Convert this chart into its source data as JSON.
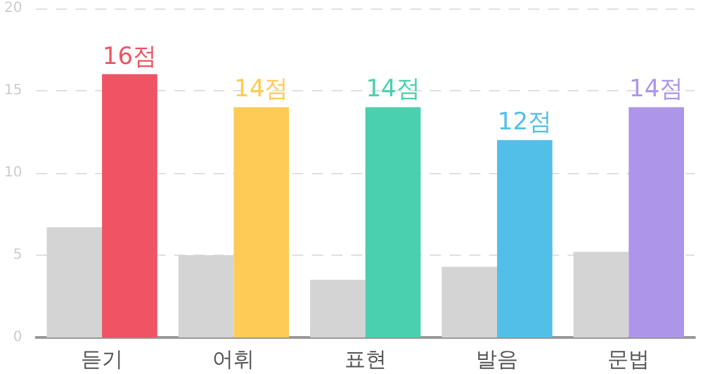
{
  "chart_data": {
    "type": "bar",
    "categories": [
      "듣기",
      "어휘",
      "표현",
      "발음",
      "문법"
    ],
    "series": [
      {
        "color": "#d4d4d4",
        "values": [
          6.7,
          5.0,
          3.5,
          4.3,
          5.2
        ]
      },
      {
        "colors": [
          "#ee5463",
          "#fecb55",
          "#4ad0ae",
          "#52bfe8",
          "#ad95ea"
        ],
        "values": [
          16,
          14,
          14,
          12,
          14
        ],
        "value_labels": [
          "16점",
          "14점",
          "14점",
          "12점",
          "14점"
        ]
      }
    ],
    "ylim": [
      0,
      20
    ],
    "yticks": [
      0,
      5,
      10,
      15,
      20
    ],
    "grid": "y"
  }
}
